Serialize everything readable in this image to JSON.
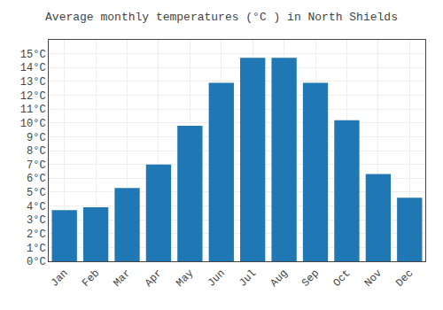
{
  "chart_data": {
    "type": "bar",
    "title": "Average monthly temperatures (°C ) in North Shields",
    "categories": [
      "Jan",
      "Feb",
      "Mar",
      "Apr",
      "May",
      "Jun",
      "Jul",
      "Aug",
      "Sep",
      "Oct",
      "Nov",
      "Dec"
    ],
    "values": [
      3.7,
      3.9,
      5.3,
      7.0,
      9.8,
      12.9,
      14.7,
      14.7,
      12.9,
      10.2,
      6.3,
      4.6
    ],
    "ylim": [
      0,
      16
    ],
    "yticks": [
      {
        "value": 0,
        "label": "0°C"
      },
      {
        "value": 1,
        "label": "1°C"
      },
      {
        "value": 2,
        "label": "2°C"
      },
      {
        "value": 3,
        "label": "3°C"
      },
      {
        "value": 4,
        "label": "4°C"
      },
      {
        "value": 5,
        "label": "5°C"
      },
      {
        "value": 6,
        "label": "6°C"
      },
      {
        "value": 7,
        "label": "7°C"
      },
      {
        "value": 8,
        "label": "8°C"
      },
      {
        "value": 9,
        "label": "9°C"
      },
      {
        "value": 10,
        "label": "10°C"
      },
      {
        "value": 11,
        "label": "11°C"
      },
      {
        "value": 12,
        "label": "12°C"
      },
      {
        "value": 13,
        "label": "13°C"
      },
      {
        "value": 14,
        "label": "14°C"
      },
      {
        "value": 15,
        "label": "15°C"
      }
    ],
    "grid": true
  }
}
